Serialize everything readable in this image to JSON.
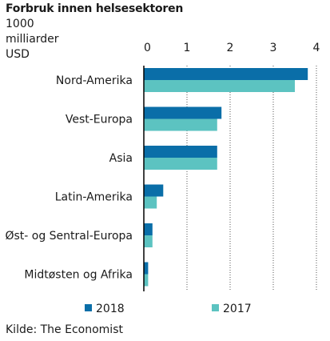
{
  "chart_data": {
    "type": "bar",
    "orientation": "horizontal",
    "title": "Forbruk innen helsesektoren",
    "unit_lines": [
      "1000",
      "milliarder",
      "USD"
    ],
    "categories": [
      "Nord-Amerika",
      "Vest-Europa",
      "Asia",
      "Latin-Amerika",
      "Øst- og Sentral-Europa",
      "Midtøsten og Afrika"
    ],
    "series": [
      {
        "name": "2018",
        "color": "#0a6ea8",
        "values": [
          3.8,
          1.8,
          1.7,
          0.45,
          0.2,
          0.1
        ]
      },
      {
        "name": "2017",
        "color": "#5cc3c1",
        "values": [
          3.5,
          1.7,
          1.7,
          0.3,
          0.2,
          0.1
        ]
      }
    ],
    "xlim": [
      0,
      4
    ],
    "xticks": [
      0,
      1,
      2,
      3,
      4
    ],
    "grid": "vertical dotted",
    "legend_position": "bottom",
    "source": "Kilde: The Economist"
  }
}
